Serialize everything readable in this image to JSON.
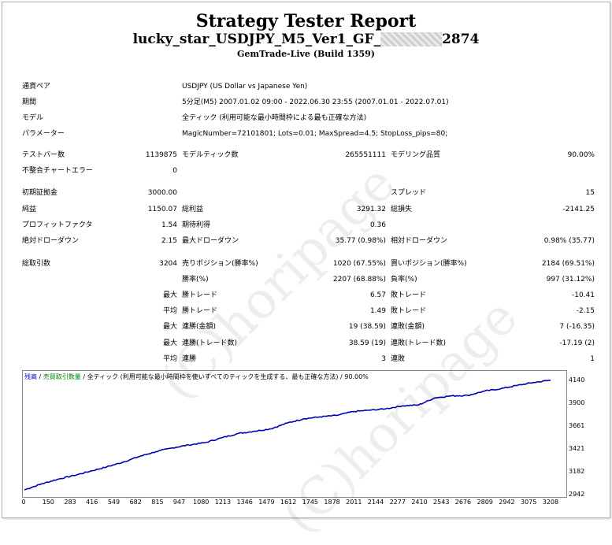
{
  "report": {
    "title": "Strategy Tester Report",
    "ea_name_prefix": "lucky_star_USDJPY_M5_Ver1_GF_",
    "ea_name_suffix": "2874",
    "server": "GemTrade-Live (Build 1359)"
  },
  "info": {
    "symbol_label": "通貨ペア",
    "symbol_value": "USDJPY (US Dollar vs Japanese Yen)",
    "period_label": "期間",
    "period_value": "5分足(M5) 2007.01.02 09:00 - 2022.06.30 23:55 (2007.01.01 - 2022.07.01)",
    "model_label": "モデル",
    "model_value": "全ティック (利用可能な最小時間枠による最も正確な方法)",
    "params_label": "パラメーター",
    "params_value": "MagicNumber=72101801; Lots=0.01; MaxSpread=4.5; StopLoss_pips=80;"
  },
  "stats": {
    "bars_label": "テストバー数",
    "bars_value": "1139875",
    "ticks_label": "モデルティック数",
    "ticks_value": "265551111",
    "quality_label": "モデリング品質",
    "quality_value": "90.00%",
    "mismatch_label": "不整合チャートエラー",
    "mismatch_value": "0",
    "deposit_label": "初期証拠金",
    "deposit_value": "3000.00",
    "spread_label": "スプレッド",
    "spread_value": "15",
    "netprofit_label": "純益",
    "netprofit_value": "1150.07",
    "grossprofit_label": "総利益",
    "grossprofit_value": "3291.32",
    "grossloss_label": "総損失",
    "grossloss_value": "-2141.25",
    "pf_label": "プロフィットファクタ",
    "pf_value": "1.54",
    "expected_label": "期待利得",
    "expected_value": "0.36",
    "absdd_label": "絶対ドローダウン",
    "absdd_value": "2.15",
    "maxdd_label": "最大ドローダウン",
    "maxdd_value": "35.77 (0.98%)",
    "reldd_label": "相対ドローダウン",
    "reldd_value": "0.98% (35.77)",
    "trades_label": "総取引数",
    "trades_value": "3204",
    "short_label": "売りポジション(勝率%)",
    "short_value": "1020 (67.55%)",
    "long_label": "買いポジション(勝率%)",
    "long_value": "2184 (69.51%)",
    "winrate_label": "勝率(%)",
    "winrate_value": "2207 (68.88%)",
    "lossrate_label": "負率(%)",
    "lossrate_value": "997 (31.12%)",
    "max_label": "最大",
    "avg_label": "平均",
    "win_trade_label": "勝トレード",
    "loss_trade_label": "敗トレード",
    "max_win_value": "6.57",
    "max_loss_value": "-10.41",
    "avg_win_value": "1.49",
    "avg_loss_value": "-2.15",
    "consec_win_money_label": "連勝(金額)",
    "consec_win_money_value": "19 (38.59)",
    "consec_loss_money_label": "連敗(金額)",
    "consec_loss_money_value": "7 (-16.35)",
    "consec_win_trades_label": "連勝(トレード数)",
    "consec_win_trades_value": "38.59 (19)",
    "consec_loss_trades_label": "連敗(トレード数)",
    "consec_loss_trades_value": "-17.19 (2)",
    "avg_consec_win_label": "連勝",
    "avg_consec_win_value": "3",
    "avg_consec_loss_label": "連敗",
    "avg_consec_loss_value": "1"
  },
  "chart_header": {
    "balance": "残高",
    "sep1": " / ",
    "volume": "売買取引数量",
    "rest": " / 全ティック (利用可能な最小時間枠を使いすべてのティックを生成する、最も正確な方法) / 90.00%"
  },
  "watermark": "(C)horipage",
  "chart_data": {
    "type": "line",
    "title": "",
    "xlabel": "",
    "ylabel": "",
    "x_ticks": [
      0,
      150,
      283,
      416,
      549,
      682,
      815,
      947,
      1080,
      1213,
      1346,
      1479,
      1612,
      1745,
      1878,
      2011,
      2144,
      2277,
      2410,
      2543,
      2676,
      2809,
      2942,
      3075,
      3208
    ],
    "y_ticks": [
      2942,
      3182,
      3421,
      3661,
      3900,
      4140
    ],
    "xlim": [
      0,
      3290
    ],
    "ylim": [
      2942,
      4230
    ],
    "series": [
      {
        "color": "#0000b0",
        "x": [
          0,
          100,
          200,
          300,
          400,
          500,
          600,
          700,
          800,
          900,
          1000,
          1100,
          1200,
          1300,
          1400,
          1500,
          1600,
          1700,
          1800,
          1900,
          2000,
          2100,
          2200,
          2300,
          2400,
          2500,
          2600,
          2700,
          2800,
          2900,
          3000,
          3100,
          3204
        ],
        "y": [
          3000,
          3060,
          3110,
          3150,
          3195,
          3240,
          3290,
          3350,
          3400,
          3440,
          3470,
          3495,
          3545,
          3590,
          3615,
          3640,
          3700,
          3745,
          3765,
          3780,
          3820,
          3835,
          3850,
          3880,
          3890,
          3965,
          3985,
          3990,
          4035,
          4060,
          4095,
          4125,
          4150
        ]
      }
    ]
  }
}
